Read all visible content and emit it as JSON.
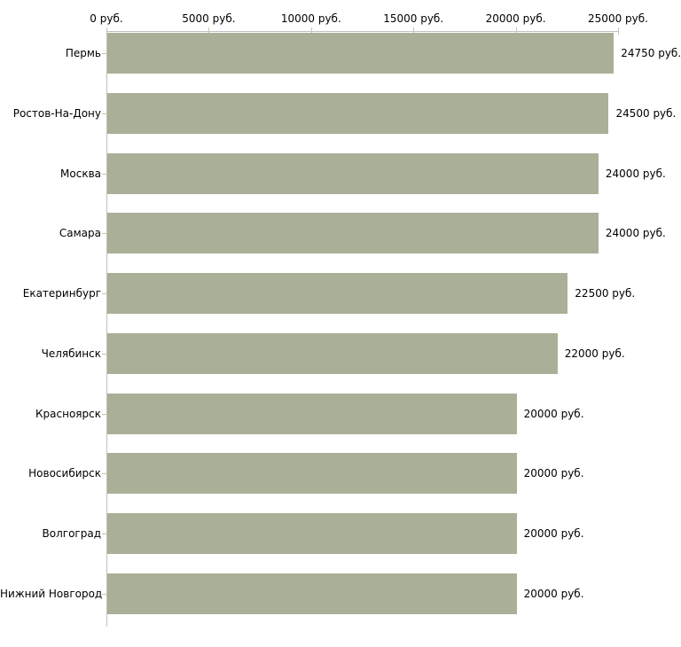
{
  "chart_data": {
    "type": "bar",
    "orientation": "horizontal",
    "title": "",
    "categories": [
      "Пермь",
      "Ростов-На-Дону",
      "Москва",
      "Самара",
      "Екатеринбург",
      "Челябинск",
      "Красноярск",
      "Новосибирск",
      "Волгоград",
      "Нижний Новгород"
    ],
    "values": [
      24750,
      24500,
      24000,
      24000,
      22500,
      22000,
      20000,
      20000,
      20000,
      20000
    ],
    "value_labels": [
      "24750 руб.",
      "24500 руб.",
      "24000 руб.",
      "24000 руб.",
      "22500 руб.",
      "22000 руб.",
      "20000 руб.",
      "20000 руб.",
      "20000 руб.",
      "20000 руб."
    ],
    "unit": "руб.",
    "x_axis": {
      "position": "top",
      "range": [
        0,
        25000
      ],
      "ticks": [
        0,
        5000,
        10000,
        15000,
        20000,
        25000
      ],
      "tick_labels": [
        "0 руб.",
        "5000 руб.",
        "10000 руб.",
        "15000 руб.",
        "20000 руб.",
        "25000 руб."
      ]
    },
    "grid": false,
    "legend": false,
    "colors": {
      "bar_fill": "#a9b097",
      "axis_line": "#c0c0c0",
      "tick_mark": "#c5c6a2",
      "text": "#000000",
      "background": "#ffffff"
    }
  }
}
